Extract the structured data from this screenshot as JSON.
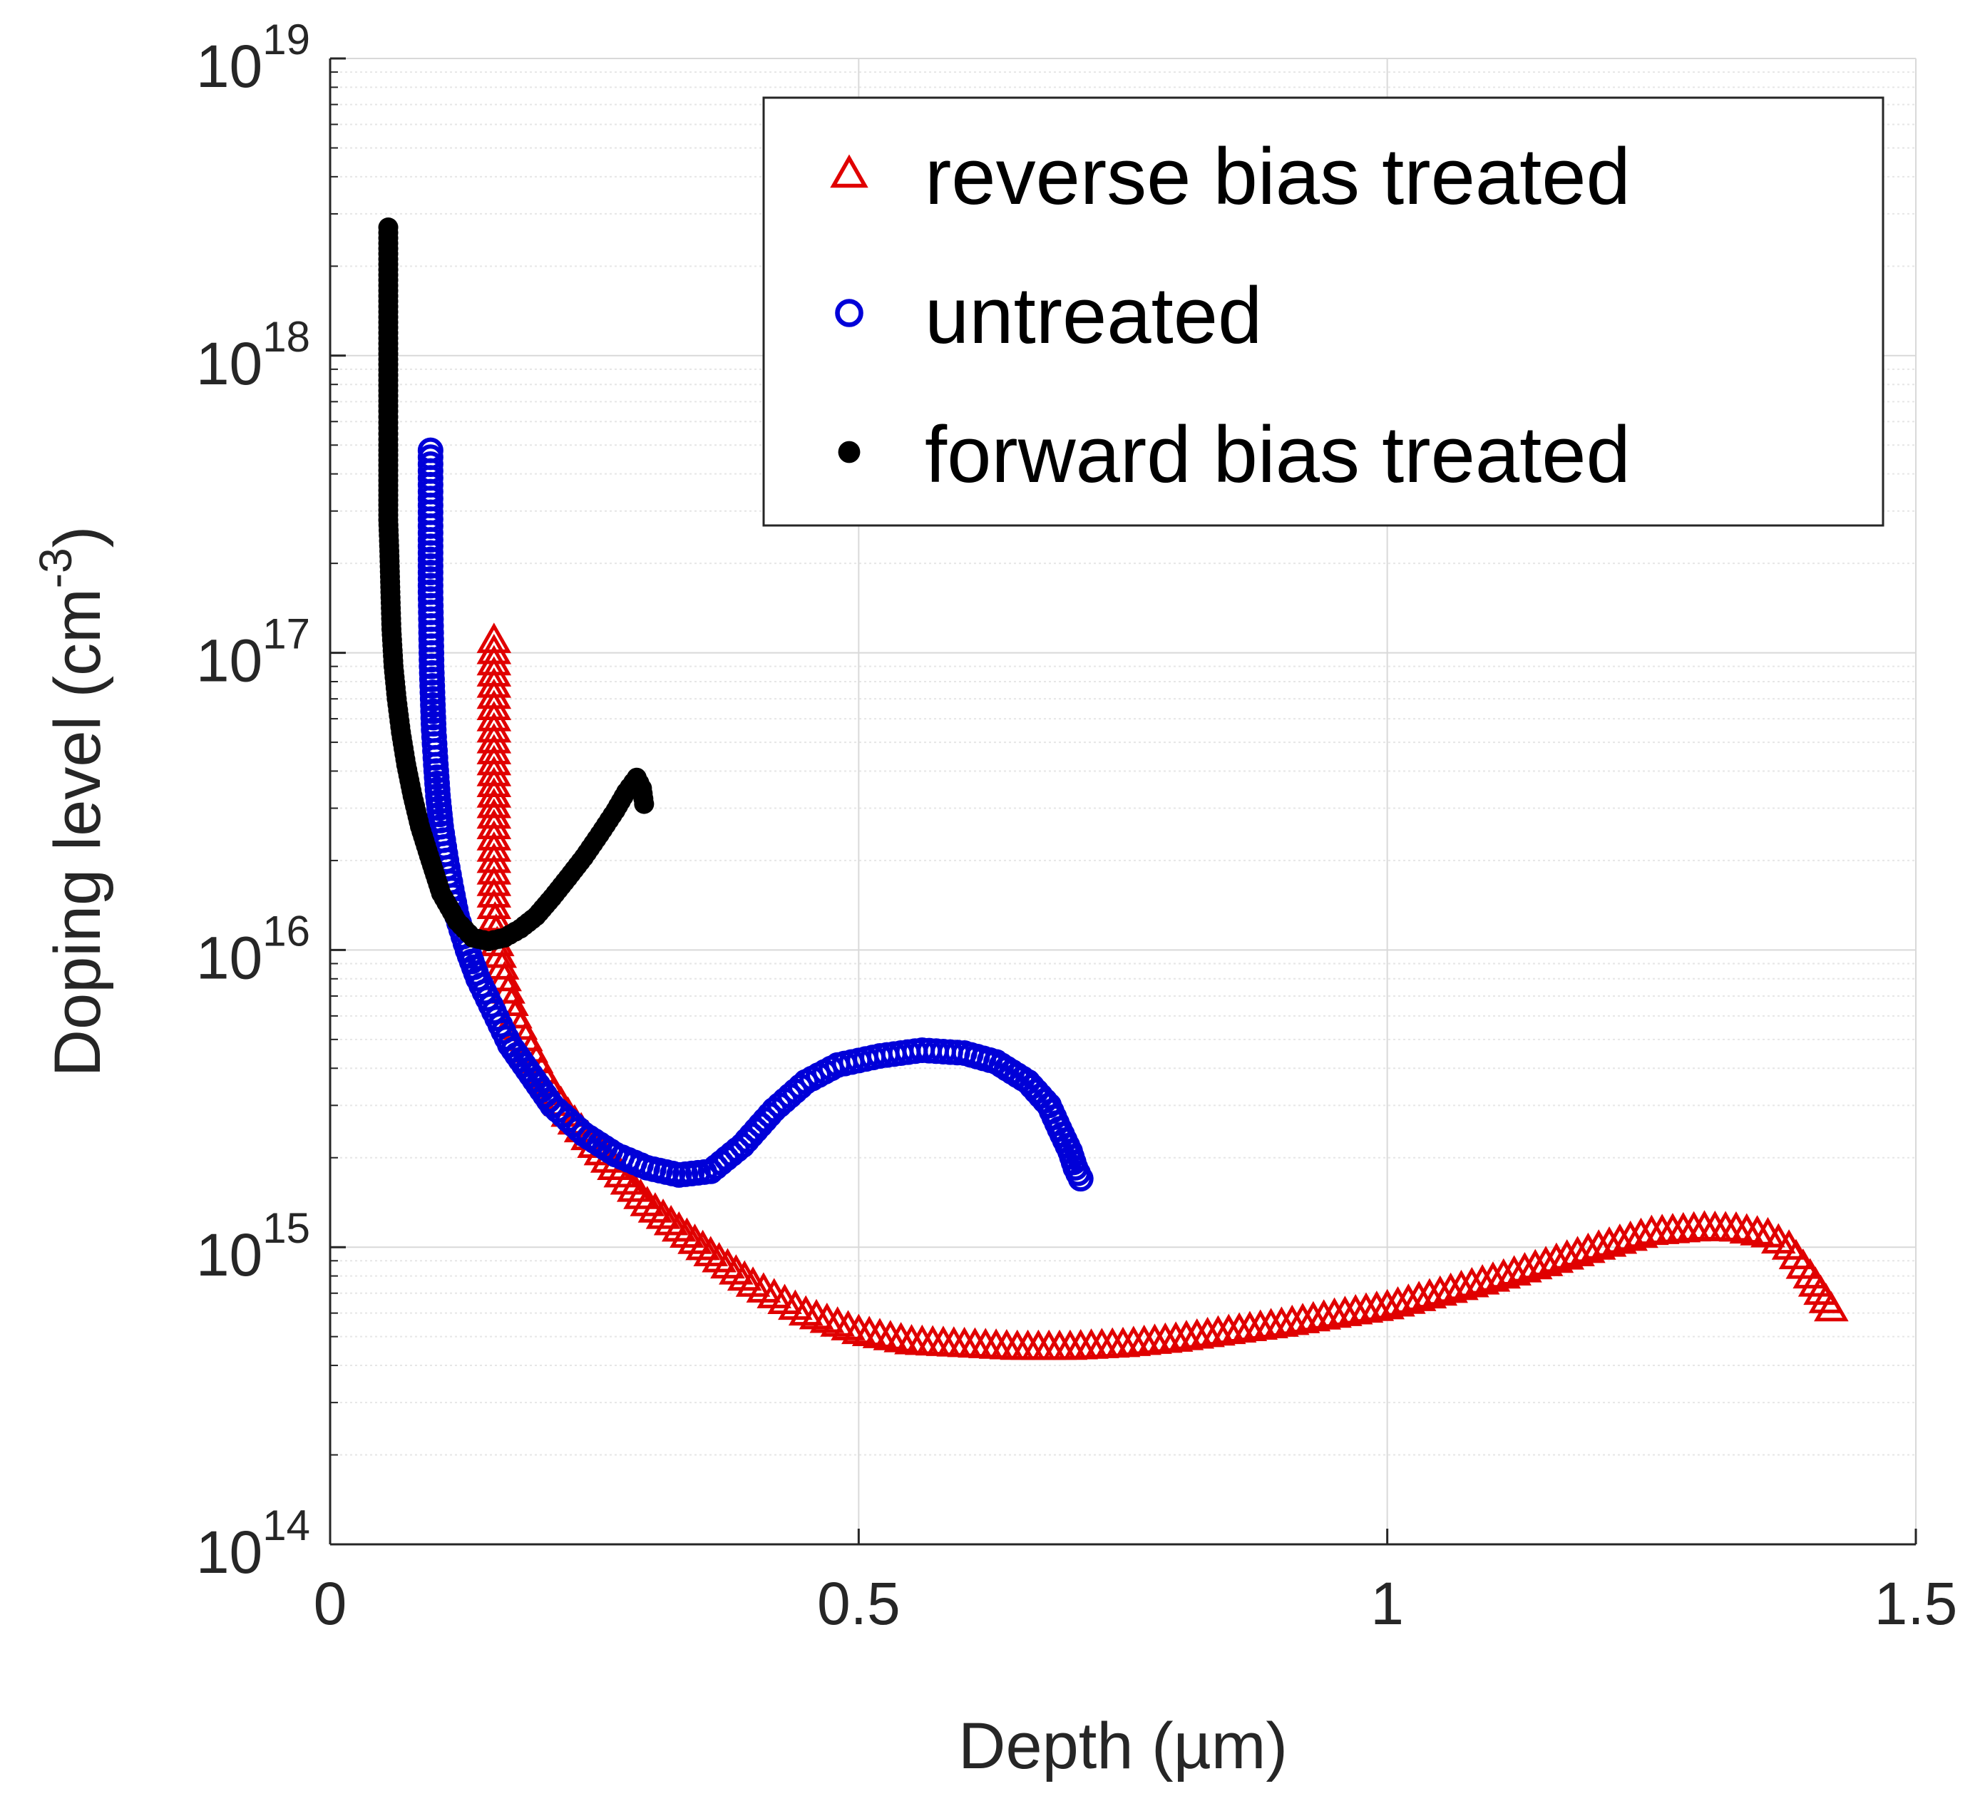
{
  "chart_data": {
    "type": "scatter",
    "title": "",
    "xlabel": "Depth (µm)",
    "ylabel_main": "Doping level (cm",
    "ylabel_sup": "-3",
    "ylabel_tail": ")",
    "xscale": "linear",
    "yscale": "log",
    "xlim": [
      0,
      1.5
    ],
    "ylim": [
      100000000000000.0,
      1e+19
    ],
    "xticks": [
      0,
      0.5,
      1,
      1.5
    ],
    "xtick_labels": [
      "0",
      "0.5",
      "1",
      "1.5"
    ],
    "yticks": [
      100000000000000.0,
      1000000000000000.0,
      1e+16,
      1e+17,
      1e+18,
      1e+19
    ],
    "ytick_base": "10",
    "ytick_exponents": [
      "14",
      "15",
      "16",
      "17",
      "18",
      "19"
    ],
    "grid": true,
    "legend_position": "top-right",
    "series": [
      {
        "name": "reverse bias treated",
        "marker": "triangle-open",
        "color": "#E00000",
        "x": [
          0.155,
          0.155,
          0.155,
          0.155,
          0.155,
          0.155,
          0.158,
          0.165,
          0.175,
          0.19,
          0.205,
          0.225,
          0.25,
          0.275,
          0.3,
          0.33,
          0.36,
          0.4,
          0.45,
          0.5,
          0.55,
          0.6,
          0.65,
          0.7,
          0.75,
          0.8,
          0.85,
          0.9,
          0.95,
          1.0,
          1.05,
          1.1,
          1.15,
          1.2,
          1.25,
          1.3,
          1.33,
          1.36,
          1.38,
          1.4,
          1.42
        ],
        "y": [
          1.1e+17,
          5.5e+16,
          3.6e+16,
          2.6e+16,
          2e+16,
          1.4e+16,
          1.05e+16,
          8000000000000000.0,
          6000000000000000.0,
          4600000000000000.0,
          3600000000000000.0,
          2800000000000000.0,
          2200000000000000.0,
          1750000000000000.0,
          1400000000000000.0,
          1150000000000000.0,
          950000000000000.0,
          750000000000000.0,
          600000000000000.0,
          520000000000000.0,
          480000000000000.0,
          470000000000000.0,
          460000000000000.0,
          460000000000000.0,
          470000000000000.0,
          490000000000000.0,
          520000000000000.0,
          550000000000000.0,
          590000000000000.0,
          630000000000000.0,
          700000000000000.0,
          780000000000000.0,
          880000000000000.0,
          1000000000000000.0,
          1120000000000000.0,
          1160000000000000.0,
          1150000000000000.0,
          1100000000000000.0,
          1000000000000000.0,
          800000000000000.0,
          620000000000000.0
        ]
      },
      {
        "name": "untreated",
        "marker": "circle-open",
        "color": "#0000D8",
        "x": [
          0.095,
          0.095,
          0.095,
          0.096,
          0.097,
          0.098,
          0.1,
          0.102,
          0.105,
          0.11,
          0.115,
          0.12,
          0.13,
          0.14,
          0.155,
          0.17,
          0.19,
          0.21,
          0.24,
          0.27,
          0.3,
          0.33,
          0.36,
          0.39,
          0.42,
          0.45,
          0.48,
          0.52,
          0.56,
          0.6,
          0.63,
          0.66,
          0.68,
          0.69,
          0.7,
          0.705,
          0.71
        ],
        "y": [
          4.8e+17,
          2.4e+17,
          1.6e+17,
          9e+16,
          7e+16,
          5.5e+16,
          4.2e+16,
          3.3e+16,
          2.6e+16,
          2e+16,
          1.6e+16,
          1.3e+16,
          1e+16,
          8000000000000000.0,
          6200000000000000.0,
          4800000000000000.0,
          3800000000000000.0,
          3000000000000000.0,
          2400000000000000.0,
          2050000000000000.0,
          1850000000000000.0,
          1750000000000000.0,
          1800000000000000.0,
          2200000000000000.0,
          2900000000000000.0,
          3600000000000000.0,
          4100000000000000.0,
          4400000000000000.0,
          4600000000000000.0,
          4500000000000000.0,
          4200000000000000.0,
          3600000000000000.0,
          3000000000000000.0,
          2500000000000000.0,
          2100000000000000.0,
          1850000000000000.0,
          1700000000000000.0
        ]
      },
      {
        "name": "forward bias treated",
        "marker": "dot",
        "color": "#000000",
        "x": [
          0.055,
          0.055,
          0.055,
          0.055,
          0.055,
          0.055,
          0.056,
          0.057,
          0.058,
          0.06,
          0.063,
          0.067,
          0.072,
          0.078,
          0.085,
          0.095,
          0.105,
          0.12,
          0.135,
          0.15,
          0.165,
          0.18,
          0.195,
          0.21,
          0.225,
          0.24,
          0.255,
          0.27,
          0.28,
          0.29,
          0.295,
          0.297
        ],
        "y": [
          2.7e+18,
          8.6e+17,
          6.5e+17,
          5e+17,
          3.8e+17,
          2.8e+17,
          2.2e+17,
          1.6e+17,
          1.2e+17,
          9e+16,
          7e+16,
          5.4e+16,
          4.2e+16,
          3.3e+16,
          2.6e+16,
          2e+16,
          1.55e+16,
          1.25e+16,
          1.1e+16,
          1.07e+16,
          1.1e+16,
          1.18e+16,
          1.3e+16,
          1.5e+16,
          1.75e+16,
          2.05e+16,
          2.45e+16,
          2.95e+16,
          3.4e+16,
          3.8e+16,
          3.5e+16,
          3.1e+16
        ]
      }
    ]
  }
}
